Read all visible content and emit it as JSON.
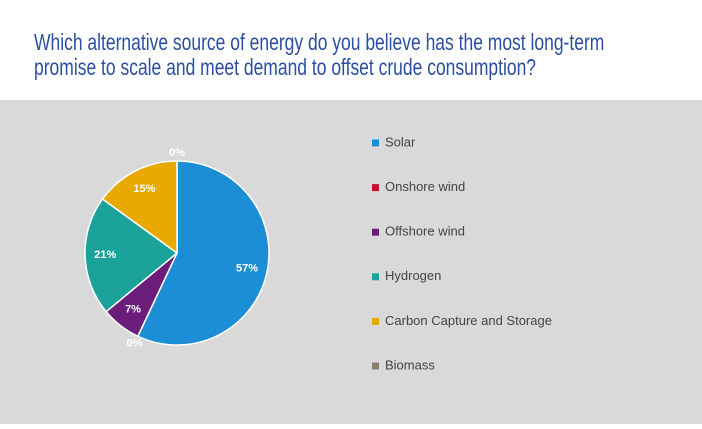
{
  "chart_data": {
    "type": "pie",
    "title": "Which alternative source of energy do you believe has the most long-term promise to scale and meet demand to offset crude consumption?",
    "categories": [
      "Solar",
      "Onshore wind",
      "Offshore wind",
      "Hydrogen",
      "Carbon Capture and Storage",
      "Biomass"
    ],
    "values": [
      57,
      0,
      7,
      21,
      15,
      0
    ],
    "value_labels": [
      "57%",
      "0%",
      "7%",
      "21%",
      "15%",
      "0%"
    ],
    "colors": [
      "#1b8ed6",
      "#c8102e",
      "#6b1d7b",
      "#1ba39b",
      "#e8a900",
      "#8c7f6e"
    ],
    "legend": "right"
  }
}
